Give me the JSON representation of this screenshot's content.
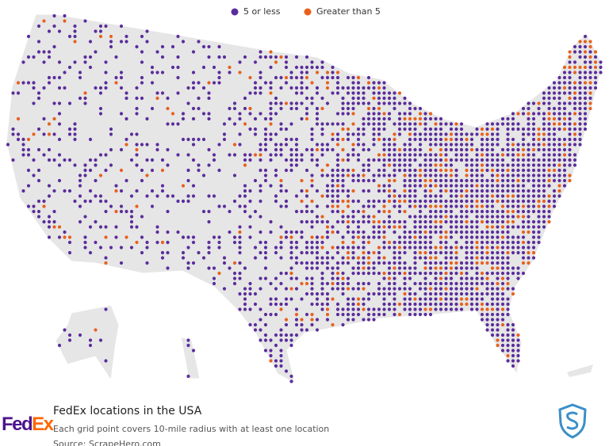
{
  "legend": {
    "items": [
      {
        "label": "5 or less",
        "color": "#5b2d9c"
      },
      {
        "label": "Greater than 5",
        "color": "#e8601c"
      }
    ]
  },
  "title": "FedEx locations in the USA",
  "subtitle": "Each grid point covers 10-mile radius with at least one location",
  "source": "Source: ScrapeHero.com",
  "logo": {
    "fed": "Fed",
    "ex": "Ex"
  }
}
